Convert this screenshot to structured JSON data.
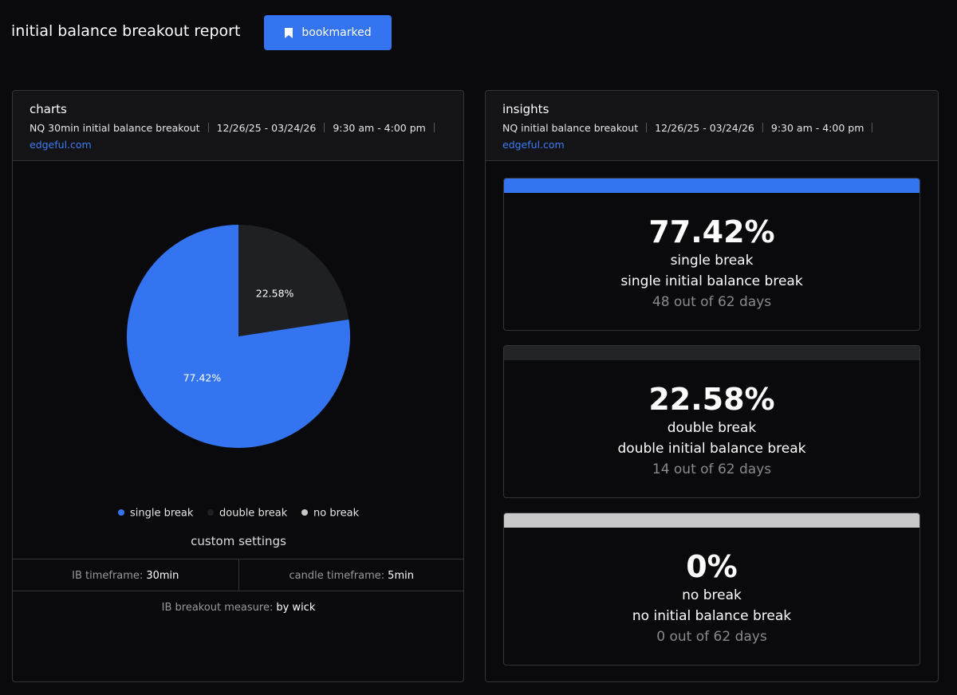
{
  "header": {
    "title": "initial balance breakout report",
    "button": "bookmarked"
  },
  "charts_panel": {
    "title": "charts",
    "meta": [
      "NQ 30min initial balance breakout",
      "12/26/25 - 03/24/26",
      "9:30 am - 4:00 pm"
    ],
    "link": "edgeful.com",
    "custom_settings": {
      "title": "custom settings",
      "items": [
        {
          "label": "IB timeframe:",
          "value": "30min"
        },
        {
          "label": "candle timeframe:",
          "value": "5min"
        },
        {
          "label": "IB breakout measure:",
          "value": "by wick"
        }
      ]
    }
  },
  "chart_data": {
    "type": "pie",
    "categories": [
      "single break",
      "double break",
      "no break"
    ],
    "values": [
      77.42,
      22.58,
      0
    ],
    "value_labels": [
      "77.42%",
      "22.58%",
      null
    ],
    "colors": [
      "#3574f0",
      "#1f2024",
      "#c8c8c8"
    ]
  },
  "insights_panel": {
    "title": "insights",
    "meta": [
      "NQ initial balance breakout",
      "12/26/25 - 03/24/26",
      "9:30 am - 4:00 pm"
    ],
    "link": "edgeful.com",
    "cards": [
      {
        "percent": "77.42%",
        "name": "single break",
        "description": "single initial balance break",
        "days": "48 out of 62 days",
        "color": "#3574f0"
      },
      {
        "percent": "22.58%",
        "name": "double break",
        "description": "double initial balance break",
        "days": "14 out of 62 days",
        "color": "#232427"
      },
      {
        "percent": "0%",
        "name": "no break",
        "description": "no initial balance break",
        "days": "0 out of 62 days",
        "color": "#c8c8c8"
      }
    ]
  }
}
